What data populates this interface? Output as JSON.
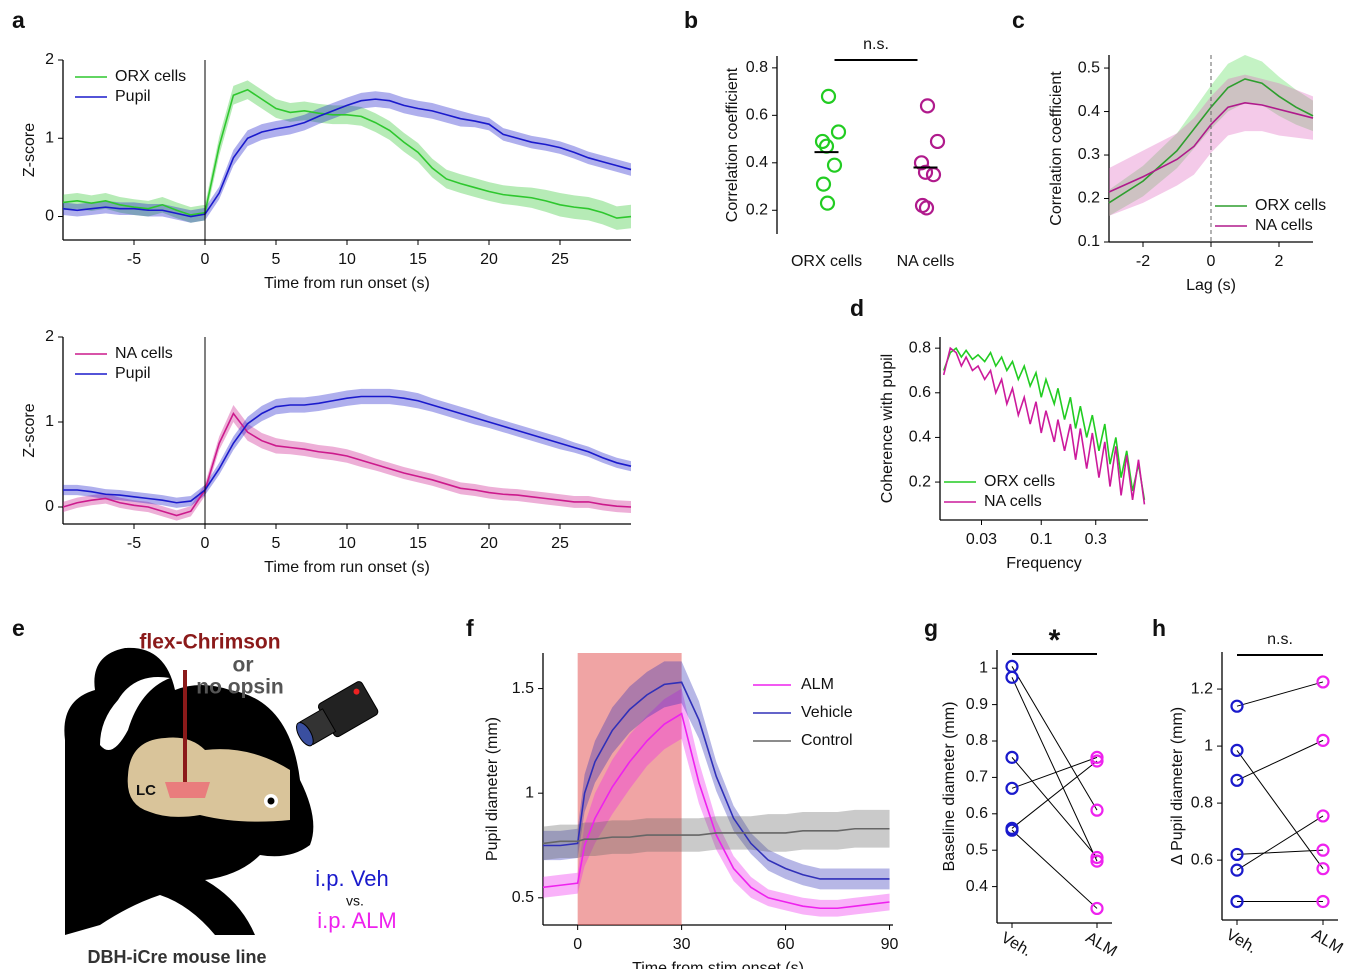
{
  "chart_data": [
    {
      "type": "line",
      "panel": "a",
      "xlabel": "Time from run onset (s)",
      "ylabel": "Z-score",
      "legend": "upper left",
      "vline": 0,
      "xlim": [
        -10,
        30
      ],
      "xticks": [
        -5,
        0,
        5,
        10,
        15,
        20,
        25
      ],
      "ylim": [
        -0.3,
        2
      ],
      "yticks": [
        0,
        1,
        2
      ],
      "x": [
        -10,
        -9,
        -8,
        -7,
        -6,
        -5,
        -4,
        -3,
        -2,
        -1,
        0,
        1,
        2,
        3,
        4,
        5,
        6,
        7,
        8,
        9,
        10,
        11,
        12,
        13,
        14,
        15,
        16,
        17,
        18,
        19,
        20,
        21,
        22,
        23,
        24,
        25,
        26,
        27,
        28,
        29,
        30
      ],
      "series": [
        {
          "name": "ORX cells",
          "color": "#2ec72e",
          "values": [
            0.18,
            0.2,
            0.17,
            0.2,
            0.15,
            0.12,
            0.1,
            0.15,
            0.08,
            0.02,
            0.05,
            0.9,
            1.55,
            1.62,
            1.5,
            1.38,
            1.33,
            1.35,
            1.32,
            1.3,
            1.3,
            1.28,
            1.2,
            1.1,
            0.95,
            0.82,
            0.62,
            0.48,
            0.42,
            0.37,
            0.32,
            0.28,
            0.26,
            0.24,
            0.2,
            0.15,
            0.12,
            0.1,
            0.05,
            -0.02,
            0.0
          ],
          "error": [
            0.1,
            0.1,
            0.1,
            0.1,
            0.1,
            0.1,
            0.1,
            0.1,
            0.1,
            0.1,
            0.1,
            0.12,
            0.12,
            0.12,
            0.12,
            0.12,
            0.12,
            0.12,
            0.12,
            0.12,
            0.12,
            0.12,
            0.12,
            0.12,
            0.12,
            0.12,
            0.12,
            0.12,
            0.12,
            0.12,
            0.12,
            0.12,
            0.12,
            0.13,
            0.14,
            0.15,
            0.15,
            0.15,
            0.15,
            0.15,
            0.15
          ]
        },
        {
          "name": "Pupil",
          "color": "#1a1acc",
          "values": [
            0.1,
            0.08,
            0.1,
            0.12,
            0.1,
            0.1,
            0.08,
            0.08,
            0.04,
            0.0,
            0.03,
            0.3,
            0.75,
            1.0,
            1.08,
            1.12,
            1.15,
            1.2,
            1.28,
            1.35,
            1.42,
            1.48,
            1.5,
            1.48,
            1.42,
            1.38,
            1.35,
            1.3,
            1.25,
            1.22,
            1.18,
            1.05,
            1.0,
            0.95,
            0.92,
            0.88,
            0.82,
            0.75,
            0.7,
            0.65,
            0.6
          ],
          "error": [
            0.08,
            0.08,
            0.08,
            0.08,
            0.08,
            0.08,
            0.08,
            0.08,
            0.08,
            0.08,
            0.08,
            0.08,
            0.1,
            0.1,
            0.1,
            0.1,
            0.1,
            0.1,
            0.1,
            0.1,
            0.1,
            0.1,
            0.1,
            0.1,
            0.1,
            0.1,
            0.1,
            0.1,
            0.1,
            0.08,
            0.08,
            0.08,
            0.08,
            0.08,
            0.08,
            0.08,
            0.08,
            0.08,
            0.08,
            0.08,
            0.08
          ]
        }
      ]
    },
    {
      "type": "line",
      "xlabel": "Time from run onset (s)",
      "ylabel": "Z-score",
      "legend": "upper left",
      "vline": 0,
      "xlim": [
        -10,
        30
      ],
      "xticks": [
        -5,
        0,
        5,
        10,
        15,
        20,
        25
      ],
      "ylim": [
        -0.2,
        2
      ],
      "yticks": [
        0,
        1,
        2
      ],
      "x": [
        -10,
        -9,
        -8,
        -7,
        -6,
        -5,
        -4,
        -3,
        -2,
        -1,
        0,
        1,
        2,
        3,
        4,
        5,
        6,
        7,
        8,
        9,
        10,
        11,
        12,
        13,
        14,
        15,
        16,
        17,
        18,
        19,
        20,
        21,
        22,
        23,
        24,
        25,
        26,
        27,
        28,
        29,
        30
      ],
      "series": [
        {
          "name": "NA cells",
          "color": "#cc1a8c",
          "values": [
            0.0,
            0.05,
            0.08,
            0.1,
            0.05,
            0.02,
            0.0,
            -0.05,
            -0.1,
            -0.05,
            0.2,
            0.75,
            1.1,
            0.88,
            0.78,
            0.72,
            0.7,
            0.68,
            0.65,
            0.63,
            0.6,
            0.55,
            0.5,
            0.45,
            0.4,
            0.36,
            0.32,
            0.27,
            0.22,
            0.2,
            0.17,
            0.15,
            0.14,
            0.12,
            0.1,
            0.08,
            0.06,
            0.06,
            0.03,
            0.01,
            0.0
          ],
          "error": [
            0.06,
            0.06,
            0.06,
            0.06,
            0.06,
            0.06,
            0.06,
            0.06,
            0.06,
            0.06,
            0.07,
            0.08,
            0.1,
            0.1,
            0.09,
            0.09,
            0.08,
            0.08,
            0.08,
            0.08,
            0.08,
            0.08,
            0.07,
            0.07,
            0.07,
            0.07,
            0.07,
            0.07,
            0.07,
            0.07,
            0.07,
            0.07,
            0.07,
            0.07,
            0.07,
            0.07,
            0.07,
            0.07,
            0.07,
            0.07,
            0.07
          ]
        },
        {
          "name": "Pupil",
          "color": "#1a1acc",
          "values": [
            0.2,
            0.2,
            0.18,
            0.15,
            0.14,
            0.12,
            0.1,
            0.08,
            0.05,
            0.07,
            0.2,
            0.45,
            0.75,
            0.98,
            1.1,
            1.18,
            1.2,
            1.2,
            1.22,
            1.25,
            1.28,
            1.3,
            1.3,
            1.3,
            1.28,
            1.25,
            1.2,
            1.15,
            1.1,
            1.05,
            1.0,
            0.95,
            0.9,
            0.85,
            0.8,
            0.75,
            0.7,
            0.65,
            0.58,
            0.52,
            0.48
          ],
          "error": [
            0.06,
            0.06,
            0.06,
            0.06,
            0.06,
            0.06,
            0.06,
            0.06,
            0.06,
            0.06,
            0.06,
            0.07,
            0.08,
            0.08,
            0.09,
            0.09,
            0.09,
            0.09,
            0.09,
            0.09,
            0.09,
            0.09,
            0.09,
            0.09,
            0.09,
            0.09,
            0.08,
            0.08,
            0.08,
            0.08,
            0.07,
            0.07,
            0.07,
            0.07,
            0.07,
            0.07,
            0.06,
            0.06,
            0.06,
            0.06,
            0.06
          ]
        }
      ]
    },
    {
      "type": "strip",
      "panel": "b",
      "ylabel": "Correlation coefficient",
      "annotation": "n.s.",
      "categories": [
        "ORX cells",
        "NA cells"
      ],
      "ylim": [
        0.1,
        0.85
      ],
      "yticks": [
        0.2,
        0.4,
        0.6,
        0.8
      ],
      "groups": [
        {
          "color": "#22cc22",
          "values": [
            0.68,
            0.53,
            0.49,
            0.47,
            0.39,
            0.31,
            0.23
          ],
          "mean": 0.445
        },
        {
          "color": "#b01a8c",
          "values": [
            0.64,
            0.49,
            0.4,
            0.36,
            0.35,
            0.22,
            0.21
          ],
          "mean": 0.38
        }
      ]
    },
    {
      "type": "line",
      "panel": "c",
      "xlabel": "Lag (s)",
      "ylabel": "Correlation coefficient",
      "legend": "lower right",
      "vline": 0,
      "xlim": [
        -3,
        3
      ],
      "xticks": [
        -2,
        0,
        2
      ],
      "ylim": [
        0.1,
        0.53
      ],
      "yticks": [
        0.1,
        0.2,
        0.3,
        0.4,
        0.5
      ],
      "x": [
        -3,
        -2,
        -1,
        -0.5,
        0,
        0.5,
        1,
        1.5,
        2,
        2.5,
        3
      ],
      "series": [
        {
          "name": "ORX cells",
          "color": "#2e9e2e",
          "band": "#55dd55",
          "values": [
            0.19,
            0.24,
            0.31,
            0.36,
            0.41,
            0.455,
            0.475,
            0.465,
            0.435,
            0.41,
            0.39
          ],
          "error": [
            0.03,
            0.035,
            0.04,
            0.045,
            0.05,
            0.055,
            0.055,
            0.05,
            0.045,
            0.04,
            0.035
          ]
        },
        {
          "name": "NA cells",
          "color": "#b01a8c",
          "band": "#e066c0",
          "values": [
            0.215,
            0.25,
            0.29,
            0.32,
            0.37,
            0.41,
            0.42,
            0.415,
            0.405,
            0.395,
            0.385
          ],
          "error": [
            0.055,
            0.06,
            0.06,
            0.065,
            0.065,
            0.065,
            0.065,
            0.06,
            0.06,
            0.055,
            0.05
          ]
        }
      ]
    },
    {
      "type": "line",
      "panel": "d",
      "xlabel": "Frequency",
      "ylabel": "Coherence with pupil",
      "legend": "lower left",
      "xlog": true,
      "xlim": [
        0.013,
        0.86
      ],
      "xticks": [
        0.03,
        0.1,
        0.3
      ],
      "ylim": [
        0.03,
        0.85
      ],
      "yticks": [
        0.2,
        0.4,
        0.6,
        0.8
      ],
      "x": [
        0.014,
        0.016,
        0.018,
        0.02,
        0.022,
        0.025,
        0.028,
        0.032,
        0.036,
        0.04,
        0.045,
        0.05,
        0.056,
        0.063,
        0.071,
        0.08,
        0.09,
        0.1,
        0.11,
        0.13,
        0.14,
        0.16,
        0.18,
        0.2,
        0.22,
        0.25,
        0.28,
        0.32,
        0.36,
        0.4,
        0.45,
        0.5,
        0.56,
        0.63,
        0.71,
        0.8
      ],
      "series": [
        {
          "name": "ORX cells",
          "color": "#22cc22",
          "values": [
            0.7,
            0.78,
            0.8,
            0.76,
            0.79,
            0.75,
            0.77,
            0.74,
            0.78,
            0.72,
            0.76,
            0.7,
            0.74,
            0.66,
            0.72,
            0.63,
            0.69,
            0.58,
            0.66,
            0.55,
            0.62,
            0.48,
            0.58,
            0.44,
            0.54,
            0.4,
            0.5,
            0.34,
            0.46,
            0.28,
            0.4,
            0.22,
            0.34,
            0.16,
            0.28,
            0.12
          ]
        },
        {
          "name": "NA cells",
          "color": "#cc1a9c",
          "values": [
            0.68,
            0.8,
            0.78,
            0.72,
            0.76,
            0.7,
            0.72,
            0.66,
            0.7,
            0.6,
            0.66,
            0.55,
            0.62,
            0.5,
            0.58,
            0.46,
            0.56,
            0.42,
            0.52,
            0.38,
            0.48,
            0.34,
            0.46,
            0.3,
            0.44,
            0.26,
            0.42,
            0.22,
            0.38,
            0.18,
            0.36,
            0.14,
            0.32,
            0.12,
            0.3,
            0.1
          ]
        }
      ]
    },
    {
      "type": "line",
      "panel": "f",
      "xlabel": "Time from stim onset (s)",
      "ylabel": "Pupil diameter (mm)",
      "legend": "upper right",
      "shade": [
        0,
        30
      ],
      "xlim": [
        -10,
        91
      ],
      "xticks": [
        0,
        30,
        60,
        90
      ],
      "ylim": [
        0.37,
        1.67
      ],
      "yticks": [
        0.5,
        1,
        1.5
      ],
      "x": [
        -10,
        -5,
        0,
        2,
        5,
        10,
        15,
        20,
        25,
        30,
        35,
        40,
        45,
        50,
        55,
        60,
        65,
        70,
        75,
        80,
        85,
        90
      ],
      "series": [
        {
          "name": "ALM",
          "color": "#ee22ee",
          "values": [
            0.55,
            0.56,
            0.57,
            0.75,
            0.88,
            1.03,
            1.15,
            1.25,
            1.33,
            1.38,
            1.05,
            0.8,
            0.64,
            0.55,
            0.5,
            0.48,
            0.46,
            0.45,
            0.45,
            0.46,
            0.47,
            0.48
          ],
          "error": [
            0.05,
            0.05,
            0.05,
            0.1,
            0.12,
            0.13,
            0.13,
            0.12,
            0.12,
            0.12,
            0.1,
            0.07,
            0.06,
            0.05,
            0.04,
            0.04,
            0.04,
            0.04,
            0.04,
            0.04,
            0.04,
            0.04
          ]
        },
        {
          "name": "Vehicle",
          "color": "#3030b8",
          "values": [
            0.75,
            0.75,
            0.76,
            1.0,
            1.15,
            1.3,
            1.4,
            1.47,
            1.52,
            1.53,
            1.35,
            1.08,
            0.88,
            0.76,
            0.68,
            0.64,
            0.61,
            0.59,
            0.59,
            0.59,
            0.59,
            0.59
          ],
          "error": [
            0.07,
            0.07,
            0.07,
            0.09,
            0.1,
            0.11,
            0.11,
            0.11,
            0.11,
            0.1,
            0.09,
            0.07,
            0.06,
            0.05,
            0.05,
            0.05,
            0.05,
            0.05,
            0.05,
            0.05,
            0.05,
            0.05
          ]
        },
        {
          "name": "Control",
          "color": "#666666",
          "values": [
            0.76,
            0.77,
            0.77,
            0.78,
            0.78,
            0.79,
            0.79,
            0.8,
            0.8,
            0.8,
            0.8,
            0.81,
            0.81,
            0.81,
            0.81,
            0.81,
            0.82,
            0.82,
            0.82,
            0.83,
            0.83,
            0.83
          ],
          "error": [
            0.08,
            0.08,
            0.08,
            0.08,
            0.08,
            0.08,
            0.08,
            0.08,
            0.08,
            0.08,
            0.08,
            0.08,
            0.08,
            0.08,
            0.09,
            0.09,
            0.09,
            0.09,
            0.09,
            0.09,
            0.09,
            0.09
          ]
        }
      ]
    },
    {
      "type": "paired",
      "panel": "g",
      "ylabel": "Baseline diameter (mm)",
      "annotation": "*",
      "categories": [
        "Veh.",
        "ALM"
      ],
      "ylim": [
        0.3,
        1.05
      ],
      "yticks": [
        0.4,
        0.5,
        0.6,
        0.7,
        0.8,
        0.9,
        1
      ],
      "groups": [
        {
          "color": "#1a1acc",
          "values": [
            1.005,
            0.975,
            0.755,
            0.67,
            0.56,
            0.555
          ]
        },
        {
          "color": "#ee22ee",
          "values": [
            0.61,
            0.47,
            0.48,
            0.755,
            0.745,
            0.34
          ]
        }
      ]
    },
    {
      "type": "paired",
      "panel": "h",
      "ylabel": "Δ Pupil diameter (mm)",
      "annotation": "n.s.",
      "categories": [
        "Veh.",
        "ALM"
      ],
      "ylim": [
        0.39,
        1.33
      ],
      "yticks": [
        0.6,
        0.8,
        1,
        1.2
      ],
      "groups": [
        {
          "color": "#1a1acc",
          "values": [
            1.14,
            0.985,
            0.88,
            0.62,
            0.565,
            0.455
          ]
        },
        {
          "color": "#ee22ee",
          "values": [
            1.225,
            0.57,
            1.02,
            0.635,
            0.755,
            0.455
          ]
        }
      ]
    }
  ],
  "illustration": {
    "panel": "e",
    "injection": "flex-Chrimson",
    "or": "or",
    "control": "no opsin",
    "region": "LC",
    "treatment_1": "i.p. Veh",
    "versus": "vs.",
    "treatment_2": "i.p. ALM",
    "caption": "DBH-iCre mouse line"
  }
}
